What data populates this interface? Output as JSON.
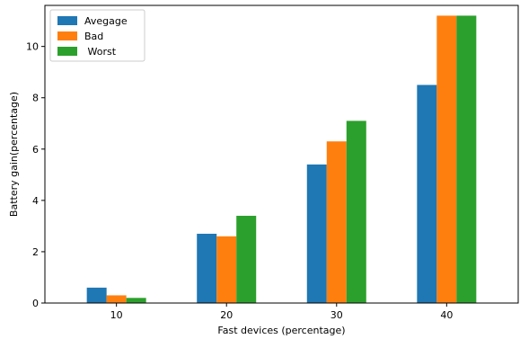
{
  "chart_data": {
    "type": "bar",
    "title": "",
    "xlabel": "Fast devices (percentage)",
    "ylabel": "Battery gain(percentage)",
    "categories": [
      "10",
      "20",
      "30",
      "40"
    ],
    "series": [
      {
        "name": "Avegage",
        "color": "#1f77b4",
        "values": [
          0.6,
          2.7,
          5.4,
          8.5
        ]
      },
      {
        "name": "Bad",
        "color": "#ff7f0e",
        "values": [
          0.3,
          2.6,
          6.3,
          11.2
        ]
      },
      {
        "name": " Worst",
        "color": "#2ca02c",
        "values": [
          0.2,
          3.4,
          7.1,
          11.2
        ]
      }
    ],
    "ylim": [
      0,
      11.6
    ],
    "yticks": [
      "0",
      "2",
      "4",
      "6",
      "8",
      "10"
    ],
    "grid": false,
    "legend_position": "top-left"
  }
}
